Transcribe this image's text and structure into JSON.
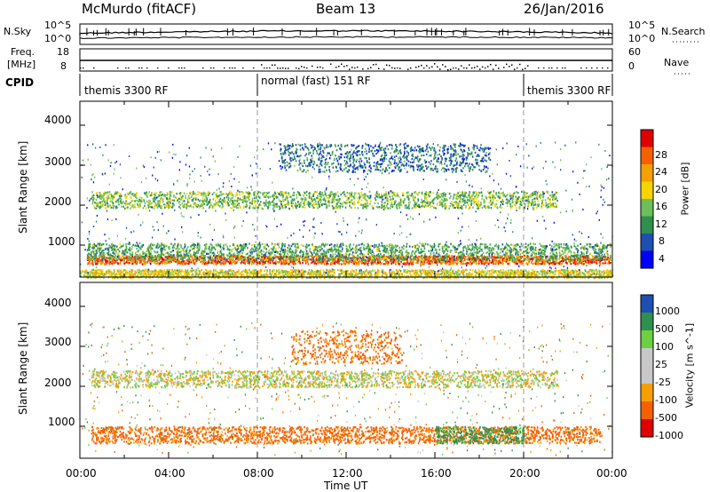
{
  "header": {
    "radar": "McMurdo (fitACF)",
    "beam": "Beam 13",
    "date": "26/Jan/2016"
  },
  "noise_panel": {
    "left_label": "N.Sky",
    "right_label": "N.Search",
    "left_ticks": [
      "10^5",
      "10^0"
    ],
    "right_ticks": [
      "10^5",
      "10^0"
    ]
  },
  "freq_panel": {
    "left_label_line1": "Freq.",
    "left_label_line2": "[MHz]",
    "right_label": "Nave",
    "left_ticks": [
      "18",
      "8"
    ],
    "right_ticks": [
      "60",
      "0"
    ]
  },
  "cpid": {
    "label": "CPID",
    "segments": [
      {
        "text": "themis 3300 RF",
        "start_hour": 0
      },
      {
        "text": "normal (fast) 151 RF",
        "start_hour": 8
      },
      {
        "text": "themis 3300 RF",
        "start_hour": 20
      }
    ]
  },
  "colors": {
    "power": [
      "#0000ff",
      "#1c4fb0",
      "#2f8f4f",
      "#6cbf5a",
      "#f5d400",
      "#f5a000",
      "#f56000",
      "#e00000"
    ],
    "velocity": [
      "#e00000",
      "#f56000",
      "#f5a000",
      "#c8c8c8",
      "#c8c8c8",
      "#6cd040",
      "#2f8f4f",
      "#1c4fb0"
    ]
  },
  "chart_data": [
    {
      "type": "heatmap",
      "name": "power",
      "xlabel": "",
      "ylabel": "Slant Range [km]",
      "xlim_hours": [
        0,
        24
      ],
      "ylim": [
        200,
        4600
      ],
      "yticks": [
        1000,
        2000,
        3000,
        4000
      ],
      "colorbar_label": "Power [dB]",
      "colorbar_ticks": [
        "28",
        "24",
        "20",
        "16",
        "12",
        "8",
        "4"
      ],
      "colorbar_range": [
        0,
        32
      ],
      "bands": [
        {
          "x_start": 0.3,
          "x_end": 23.9,
          "y": 650,
          "height": 150,
          "value": 26
        },
        {
          "x_start": 0.3,
          "x_end": 23.9,
          "y": 850,
          "height": 300,
          "value": 12
        },
        {
          "x_start": 0.5,
          "x_end": 21.5,
          "y": 2150,
          "height": 300,
          "value": 14
        },
        {
          "x_start": 9.0,
          "x_end": 18.5,
          "y": 3200,
          "height": 500,
          "value": 8
        },
        {
          "x_start": 0.0,
          "x_end": 24.0,
          "y": 300,
          "height": 150,
          "value": 18
        }
      ]
    },
    {
      "type": "heatmap",
      "name": "velocity",
      "xlabel": "Time UT",
      "ylabel": "Slant Range [km]",
      "xlim_hours": [
        0,
        24
      ],
      "ylim": [
        200,
        4600
      ],
      "yticks": [
        1000,
        2000,
        3000,
        4000
      ],
      "xticks": [
        "00:00",
        "04:00",
        "08:00",
        "12:00",
        "16:00",
        "20:00",
        "00:00"
      ],
      "colorbar_label": "Velocity [m s^-1]",
      "colorbar_ticks": [
        "1000",
        "500",
        "100",
        "25",
        "-25",
        "-100",
        "-500",
        "-1000"
      ],
      "bands": [
        {
          "x_start": 0.5,
          "x_end": 21.5,
          "y": 2200,
          "height": 300,
          "value": 0
        },
        {
          "x_start": 0.5,
          "x_end": 23.5,
          "y": 800,
          "height": 300,
          "value": -150
        },
        {
          "x_start": 9.5,
          "x_end": 14.5,
          "y": 3000,
          "height": 600,
          "value": -150
        },
        {
          "x_start": 16.0,
          "x_end": 20.0,
          "y": 800,
          "height": 300,
          "value": 150
        }
      ]
    }
  ]
}
